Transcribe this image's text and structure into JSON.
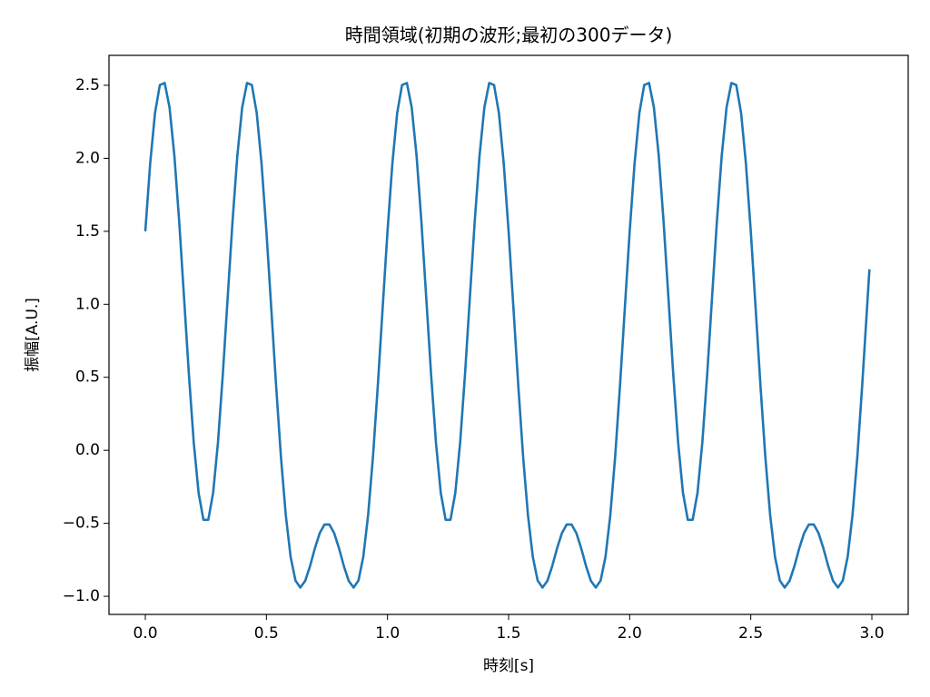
{
  "chart_data": {
    "type": "line",
    "title": "時間領域(初期の波形;最初の300データ)",
    "x_label": "時刻[s]",
    "y_label": "振幅[A.U.]",
    "x": [
      0,
      0.02,
      0.04,
      0.06,
      0.08,
      0.1,
      0.12,
      0.14,
      0.16,
      0.18,
      0.2,
      0.22,
      0.24,
      0.26,
      0.28,
      0.3,
      0.32,
      0.34,
      0.36,
      0.38,
      0.4,
      0.42,
      0.44,
      0.46,
      0.48,
      0.5,
      0.52,
      0.54,
      0.56,
      0.58,
      0.6,
      0.62,
      0.64,
      0.66,
      0.68,
      0.7,
      0.72,
      0.74,
      0.76,
      0.78,
      0.8,
      0.82,
      0.84,
      0.86,
      0.88,
      0.9,
      0.92,
      0.94,
      0.96,
      0.98,
      1,
      1.02,
      1.04,
      1.06,
      1.08,
      1.1,
      1.12,
      1.14,
      1.16,
      1.18,
      1.2,
      1.22,
      1.24,
      1.26,
      1.28,
      1.3,
      1.32,
      1.34,
      1.36,
      1.38,
      1.4,
      1.42,
      1.44,
      1.46,
      1.48,
      1.5,
      1.52,
      1.54,
      1.56,
      1.58,
      1.6,
      1.62,
      1.64,
      1.66,
      1.68,
      1.7,
      1.72,
      1.74,
      1.76,
      1.78,
      1.8,
      1.82,
      1.84,
      1.86,
      1.88,
      1.9,
      1.92,
      1.94,
      1.96,
      1.98,
      2,
      2.02,
      2.04,
      2.06,
      2.08,
      2.1,
      2.12,
      2.14,
      2.16,
      2.18,
      2.2,
      2.22,
      2.24,
      2.26,
      2.28,
      2.3,
      2.32,
      2.34,
      2.36,
      2.38,
      2.4,
      2.42,
      2.44,
      2.46,
      2.48,
      2.5,
      2.52,
      2.54,
      2.56,
      2.58,
      2.6,
      2.62,
      2.64,
      2.66,
      2.68,
      2.7,
      2.72,
      2.74,
      2.76,
      2.78,
      2.8,
      2.82,
      2.84,
      2.86,
      2.88,
      2.9,
      2.92,
      2.94,
      2.96,
      2.98,
      2.99
    ],
    "series": [
      {
        "color": "#1f77b4",
        "values": [
          1.5,
          1.962,
          2.31,
          2.502,
          2.516,
          2.348,
          2.018,
          1.565,
          1.044,
          0.519,
          0.054,
          -0.292,
          -0.476,
          -0.476,
          -0.292,
          0.054,
          0.519,
          1.044,
          1.565,
          2.018,
          2.348,
          2.516,
          2.502,
          2.31,
          1.962,
          1.5,
          0.975,
          0.443,
          -0.044,
          -0.444,
          -0.73,
          -0.892,
          -0.94,
          -0.895,
          -0.794,
          -0.672,
          -0.568,
          -0.508,
          -0.508,
          -0.568,
          -0.672,
          -0.794,
          -0.895,
          -0.94,
          -0.892,
          -0.73,
          -0.444,
          -0.044,
          0.443,
          0.975,
          1.5,
          1.962,
          2.31,
          2.502,
          2.516,
          2.348,
          2.018,
          1.565,
          1.044,
          0.519,
          0.054,
          -0.292,
          -0.476,
          -0.476,
          -0.292,
          0.054,
          0.519,
          1.044,
          1.565,
          2.018,
          2.348,
          2.516,
          2.502,
          2.31,
          1.962,
          1.5,
          0.975,
          0.443,
          -0.044,
          -0.444,
          -0.73,
          -0.892,
          -0.94,
          -0.895,
          -0.794,
          -0.672,
          -0.568,
          -0.508,
          -0.508,
          -0.568,
          -0.672,
          -0.794,
          -0.895,
          -0.94,
          -0.892,
          -0.73,
          -0.444,
          -0.044,
          0.443,
          0.975,
          1.5,
          1.962,
          2.31,
          2.502,
          2.516,
          2.348,
          2.018,
          1.565,
          1.044,
          0.519,
          0.054,
          -0.292,
          -0.476,
          -0.476,
          -0.292,
          0.054,
          0.519,
          1.044,
          1.565,
          2.018,
          2.348,
          2.516,
          2.502,
          2.31,
          1.962,
          1.5,
          0.975,
          0.443,
          -0.044,
          -0.444,
          -0.73,
          -0.892,
          -0.94,
          -0.895,
          -0.794,
          -0.672,
          -0.568,
          -0.508,
          -0.508,
          -0.568,
          -0.672,
          -0.794,
          -0.895,
          -0.94,
          -0.892,
          -0.73,
          -0.444,
          -0.044,
          0.443,
          0.975,
          1.24
        ]
      }
    ],
    "xlim": [
      -0.15,
      3.15
    ],
    "ylim": [
      -1.124,
      2.705
    ],
    "xticks": [
      {
        "value": 0,
        "label": "0.0"
      },
      {
        "value": 0.5,
        "label": "0.5"
      },
      {
        "value": 1,
        "label": "1.0"
      },
      {
        "value": 1.5,
        "label": "1.5"
      },
      {
        "value": 2,
        "label": "2.0"
      },
      {
        "value": 2.5,
        "label": "2.5"
      },
      {
        "value": 3,
        "label": "3.0"
      }
    ],
    "yticks": [
      {
        "value": -1,
        "label": "−1.0"
      },
      {
        "value": -0.5,
        "label": "−0.5"
      },
      {
        "value": 0,
        "label": "0.0"
      },
      {
        "value": 0.5,
        "label": "0.5"
      },
      {
        "value": 1,
        "label": "1.0"
      },
      {
        "value": 1.5,
        "label": "1.5"
      },
      {
        "value": 2,
        "label": "2.0"
      },
      {
        "value": 2.5,
        "label": "2.5"
      }
    ]
  }
}
